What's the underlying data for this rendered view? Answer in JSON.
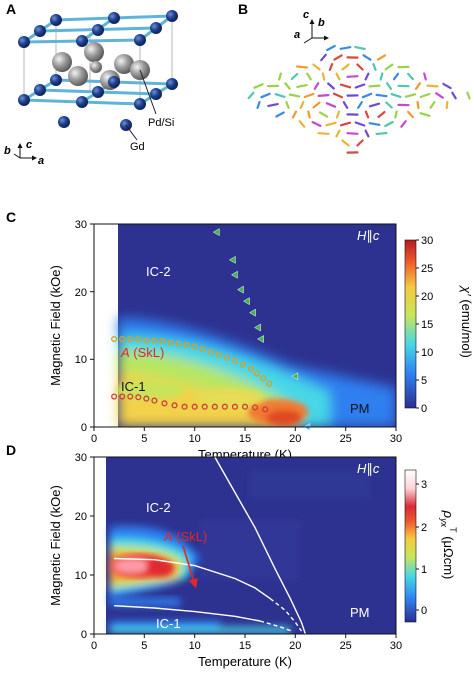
{
  "panels": {
    "a": {
      "letter": "A",
      "atom_labels": {
        "gd": "Gd",
        "pdsi": "Pd/Si"
      },
      "axes": {
        "b": "b",
        "c": "c",
        "a": "a"
      },
      "colors": {
        "gd_atom": "#1c3f86",
        "pdsi_atom": "#8a8a8a",
        "bond": "#5fb4d9"
      }
    },
    "b": {
      "letter": "B",
      "axes": {
        "c": "c",
        "b": "b",
        "a": "a"
      }
    },
    "c": {
      "letter": "C",
      "ylabel": "Magnetic Field (kOe)",
      "xlabel": "Temperature (K)",
      "x_ticks": [
        "0",
        "5",
        "10",
        "15",
        "20",
        "25",
        "30"
      ],
      "y_ticks": [
        "0",
        "10",
        "20",
        "30"
      ],
      "field_dir": {
        "h": "H",
        "par": "∥",
        "c": "c"
      },
      "phase_labels": {
        "ic2": "IC-2",
        "ic1": "IC-1",
        "pm": "PM",
        "skl_a": "A",
        "skl": "(SkL)"
      },
      "colorbar": {
        "ticks": [
          "0",
          "5",
          "10",
          "15",
          "20",
          "25",
          "30"
        ],
        "label_sym": "χ′",
        "label_unit": "(emu/mol)"
      }
    },
    "d": {
      "letter": "D",
      "ylabel": "Magnetic Field (kOe)",
      "xlabel": "Temperature (K)",
      "x_ticks": [
        "0",
        "5",
        "10",
        "15",
        "20",
        "25",
        "30"
      ],
      "y_ticks": [
        "0",
        "10",
        "20",
        "30"
      ],
      "field_dir": {
        "h": "H",
        "par": "∥",
        "c": "c"
      },
      "phase_labels": {
        "ic2": "IC-2",
        "ic1": "IC-1",
        "pm": "PM",
        "skl_a": "A",
        "skl": "(SkL)"
      },
      "colorbar": {
        "ticks": [
          "0",
          "1",
          "2",
          "3"
        ],
        "label_sym": "ρ",
        "label_sub": "yx",
        "label_sup": "T",
        "label_unit": "(μΩcm)"
      }
    }
  },
  "chart_data": [
    {
      "type": "heatmap",
      "panel": "C",
      "xlabel": "Temperature (K)",
      "ylabel": "Magnetic Field (kOe)",
      "xlim": [
        0,
        30
      ],
      "ylim": [
        0,
        30
      ],
      "colorbar_range": [
        0,
        30
      ],
      "colormap": [
        "#2b2f8f",
        "#2f7ff0",
        "#47d7e6",
        "#c8e65a",
        "#f5c940",
        "#ee5a2d",
        "#b41c1c"
      ],
      "series": [
        {
          "marker": "open-circle",
          "color": "#d9a020",
          "points": [
            [
              2.0,
              13.0
            ],
            [
              2.8,
              13.0
            ],
            [
              3.6,
              13.0
            ],
            [
              4.4,
              13.0
            ],
            [
              5.2,
              12.8
            ],
            [
              6.0,
              12.8
            ],
            [
              6.8,
              12.7
            ],
            [
              7.6,
              12.5
            ],
            [
              8.4,
              12.3
            ],
            [
              9.2,
              12.1
            ],
            [
              10.0,
              11.9
            ],
            [
              10.8,
              11.5
            ],
            [
              11.6,
              11.1
            ],
            [
              12.4,
              10.7
            ],
            [
              13.2,
              10.2
            ],
            [
              14.0,
              9.8
            ],
            [
              14.8,
              9.2
            ],
            [
              15.6,
              8.6
            ],
            [
              16.2,
              7.9
            ],
            [
              16.8,
              7.2
            ],
            [
              17.4,
              6.4
            ]
          ]
        },
        {
          "marker": "open-circle",
          "color": "#d23a3a",
          "points": [
            [
              2.0,
              4.5
            ],
            [
              2.8,
              4.5
            ],
            [
              3.6,
              4.5
            ],
            [
              4.4,
              4.4
            ],
            [
              5.2,
              4.2
            ],
            [
              6.0,
              3.9
            ],
            [
              7.0,
              3.5
            ],
            [
              8.0,
              3.2
            ],
            [
              9.0,
              3.0
            ],
            [
              10.0,
              3.0
            ],
            [
              11.0,
              3.0
            ],
            [
              12.0,
              3.0
            ],
            [
              13.0,
              3.0
            ],
            [
              14.0,
              3.0
            ],
            [
              15.0,
              3.0
            ],
            [
              16.0,
              2.9
            ],
            [
              17.0,
              2.6
            ]
          ]
        },
        {
          "marker": "triangle",
          "color": "#3fb64a",
          "points": [
            [
              12.2,
              28.8
            ],
            [
              13.8,
              24.7
            ],
            [
              14.0,
              22.5
            ],
            [
              14.6,
              20.3
            ],
            [
              15.2,
              18.6
            ],
            [
              15.8,
              16.9
            ],
            [
              16.3,
              14.7
            ],
            [
              16.6,
              13.0
            ],
            [
              20.0,
              7.5
            ]
          ]
        },
        {
          "marker": "triangle",
          "color": "#4fb6ff",
          "points": [
            [
              21.2,
              0.0
            ]
          ]
        }
      ]
    },
    {
      "type": "heatmap",
      "panel": "D",
      "xlabel": "Temperature (K)",
      "ylabel": "Magnetic Field (kOe)",
      "xlim": [
        0,
        30
      ],
      "ylim": [
        0,
        30
      ],
      "colorbar_range": [
        0,
        3
      ],
      "colormap": [
        "#2b2f8f",
        "#2f7ff0",
        "#47d7e6",
        "#c8e65a",
        "#f5c940",
        "#ee5a2d",
        "#d82a38",
        "#ffd4d8",
        "#ffffff"
      ],
      "boundaries": [
        {
          "style": "solid",
          "points": [
            [
              12.0,
              30.0
            ],
            [
              14.0,
              24.0
            ],
            [
              16.0,
              18.0
            ],
            [
              18.0,
              11.0
            ],
            [
              19.5,
              6.0
            ],
            [
              20.6,
              2.0
            ],
            [
              21.0,
              0.0
            ]
          ]
        },
        {
          "style": "solid",
          "points": [
            [
              2.0,
              12.8
            ],
            [
              6.0,
              12.6
            ],
            [
              10.0,
              11.6
            ],
            [
              14.0,
              9.4
            ],
            [
              16.0,
              7.8
            ],
            [
              17.5,
              6.0
            ]
          ]
        },
        {
          "style": "dashed",
          "points": [
            [
              17.5,
              6.0
            ],
            [
              19.0,
              4.0
            ],
            [
              20.0,
              2.0
            ],
            [
              20.6,
              0.5
            ]
          ]
        },
        {
          "style": "solid",
          "points": [
            [
              2.0,
              4.8
            ],
            [
              6.0,
              4.4
            ],
            [
              10.0,
              3.8
            ],
            [
              14.0,
              3.0
            ],
            [
              16.5,
              2.2
            ]
          ]
        },
        {
          "style": "dashed",
          "points": [
            [
              16.5,
              2.2
            ],
            [
              18.5,
              1.2
            ],
            [
              19.8,
              0.4
            ]
          ]
        }
      ],
      "annotation": {
        "text": "A (SkL)",
        "points_to": [
          10.0,
          8.5
        ]
      }
    }
  ]
}
